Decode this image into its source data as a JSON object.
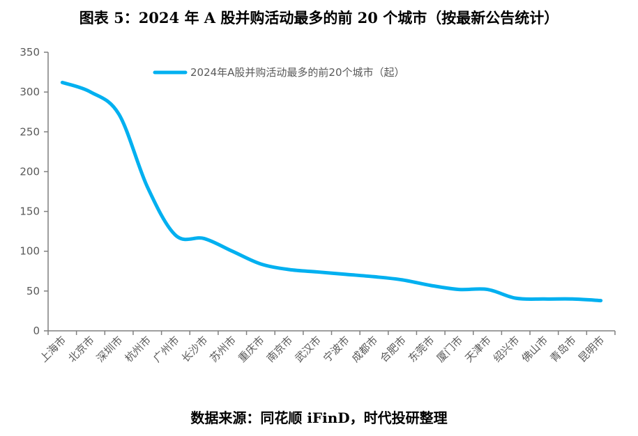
{
  "chart_data": {
    "type": "line",
    "title": "图表 5：2024 年 A 股并购活动最多的前 20 个城市（按最新公告统计）",
    "source": "数据来源：同花顺 iFinD，时代投研整理",
    "legend": "2024年A股并购活动最多的前20个城市（起）",
    "legend_position": "top-center",
    "categories": [
      "上海市",
      "北京市",
      "深圳市",
      "杭州市",
      "广州市",
      "长沙市",
      "苏州市",
      "重庆市",
      "南京市",
      "武汉市",
      "宁波市",
      "成都市",
      "合肥市",
      "东莞市",
      "厦门市",
      "天津市",
      "绍兴市",
      "佛山市",
      "青岛市",
      "昆明市"
    ],
    "values": [
      312,
      300,
      272,
      181,
      120,
      116,
      100,
      84,
      77,
      74,
      71,
      68,
      64,
      57,
      52,
      52,
      41,
      40,
      40,
      38
    ],
    "ylim": [
      0,
      350
    ],
    "yticks": [
      0,
      50,
      100,
      150,
      200,
      250,
      300,
      350
    ],
    "line_color": "#00b0f0",
    "grid": false
  }
}
